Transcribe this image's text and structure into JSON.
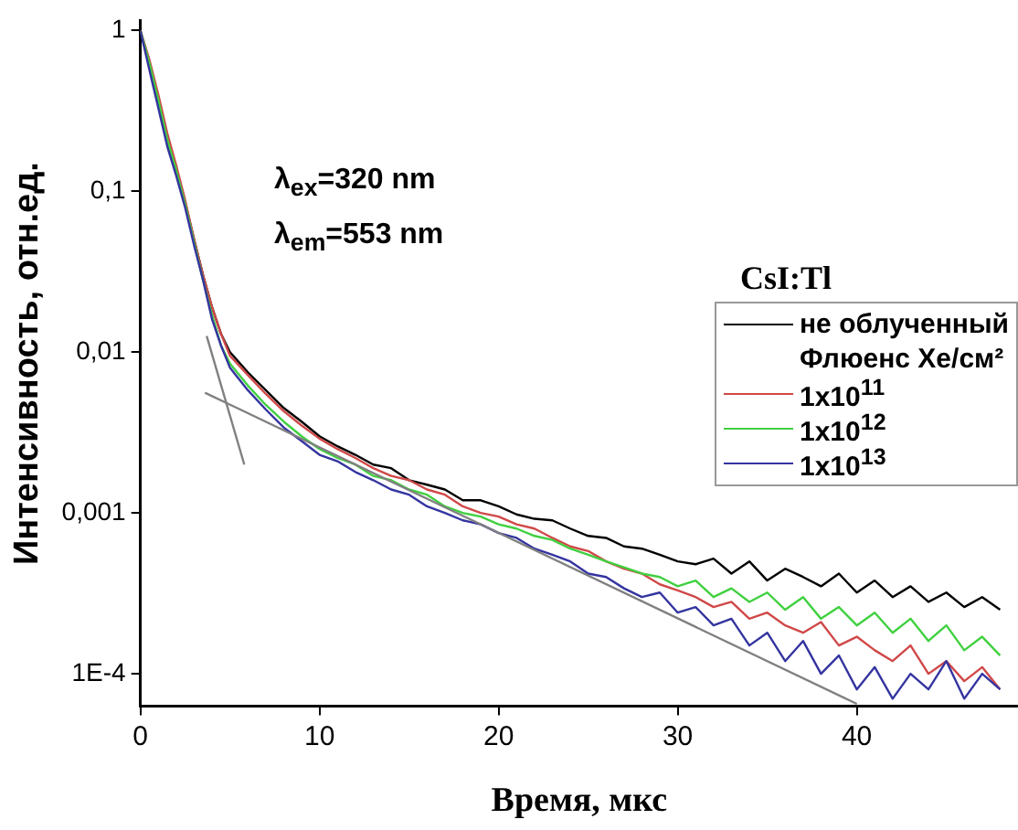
{
  "chart_data": {
    "type": "line",
    "xlabel": "Время, мкс",
    "ylabel": "Интенсивность, отн.ед.",
    "legend_title": "Флюенс Xe/см²",
    "legend": "right",
    "marker": "none",
    "line_style": "solid",
    "grid": false,
    "log": "y",
    "annotations": [
      "CsI:Tl",
      "λ$_{ex}$=320 nm",
      "λ$_{em}$=553 nm"
    ],
    "xlim": [
      0,
      49
    ],
    "xticks": [
      0,
      10,
      20,
      30,
      40
    ],
    "ylim": [
      6.3e-05,
      1.15
    ],
    "yticks": [
      1,
      {
        "value": 0.1,
        "label": "0,1"
      },
      {
        "value": 0.01,
        "label": "0,01"
      },
      {
        "value": 0.001,
        "label": "0,001"
      },
      {
        "value": 0.0001,
        "label": "1E-4"
      }
    ],
    "x": [
      0,
      0.5,
      1,
      1.5,
      2,
      2.5,
      3,
      3.5,
      4,
      4.5,
      5,
      6,
      7,
      8,
      9,
      10,
      11,
      12,
      13,
      14,
      15,
      16,
      17,
      18,
      19,
      20,
      21,
      22,
      23,
      24,
      25,
      26,
      27,
      28,
      29,
      30,
      31,
      32,
      33,
      34,
      35,
      36,
      37,
      38,
      39,
      40,
      41,
      42,
      43,
      44,
      45,
      46,
      47,
      48
    ],
    "series": [
      {
        "name": "не облученный",
        "color": "#000000",
        "values": [
          1,
          0.6,
          0.35,
          0.2,
          0.13,
          0.085,
          0.05,
          0.03,
          0.019,
          0.013,
          0.01,
          0.0075,
          0.0058,
          0.0045,
          0.0037,
          0.003,
          0.0026,
          0.0023,
          0.002,
          0.0019,
          0.0016,
          0.0015,
          0.0014,
          0.0012,
          0.0012,
          0.0011,
          0.00098,
          0.00092,
          0.0009,
          0.0008,
          0.00072,
          0.0007,
          0.00062,
          0.0006,
          0.00055,
          0.0005,
          0.00048,
          0.00052,
          0.00042,
          0.0005,
          0.00038,
          0.00045,
          0.0004,
          0.00035,
          0.00042,
          0.00032,
          0.00038,
          0.0003,
          0.00035,
          0.00028,
          0.00032,
          0.00026,
          0.0003,
          0.00025
        ]
      },
      {
        "name": "1x10$^{11}$",
        "color": "#d04848",
        "values": [
          1,
          0.66,
          0.4,
          0.23,
          0.145,
          0.088,
          0.05,
          0.03,
          0.019,
          0.013,
          0.0095,
          0.0072,
          0.0055,
          0.0043,
          0.0035,
          0.0029,
          0.0025,
          0.0022,
          0.0019,
          0.0017,
          0.0016,
          0.0014,
          0.0013,
          0.0011,
          0.001,
          0.00095,
          0.00085,
          0.0008,
          0.0007,
          0.00062,
          0.00058,
          0.0005,
          0.00045,
          0.00042,
          0.00036,
          0.00033,
          0.0003,
          0.00026,
          0.00028,
          0.00022,
          0.00024,
          0.0002,
          0.00018,
          0.00021,
          0.00015,
          0.00017,
          0.00014,
          0.00012,
          0.00015,
          0.0001,
          0.00012,
          9e-05,
          0.00011,
          8e-05
        ]
      },
      {
        "name": "1x10$^{12}$",
        "color": "#40d040",
        "values": [
          1,
          0.63,
          0.37,
          0.21,
          0.135,
          0.083,
          0.048,
          0.028,
          0.017,
          0.011,
          0.0085,
          0.0062,
          0.0047,
          0.0037,
          0.003,
          0.0025,
          0.0022,
          0.002,
          0.0017,
          0.0016,
          0.0014,
          0.0013,
          0.0011,
          0.001,
          0.00095,
          0.00085,
          0.0008,
          0.00072,
          0.00068,
          0.0006,
          0.00055,
          0.0005,
          0.00046,
          0.00042,
          0.0004,
          0.00035,
          0.00038,
          0.0003,
          0.00034,
          0.00028,
          0.00032,
          0.00025,
          0.0003,
          0.00022,
          0.00026,
          0.0002,
          0.00024,
          0.00018,
          0.00022,
          0.00016,
          0.0002,
          0.00014,
          0.00017,
          0.00013
        ]
      },
      {
        "name": "1x10$^{13}$",
        "color": "#3434a0",
        "values": [
          1,
          0.57,
          0.33,
          0.19,
          0.125,
          0.079,
          0.046,
          0.028,
          0.016,
          0.011,
          0.008,
          0.0058,
          0.0044,
          0.0034,
          0.0028,
          0.0023,
          0.0021,
          0.0018,
          0.0016,
          0.0014,
          0.0013,
          0.0011,
          0.001,
          0.0009,
          0.00085,
          0.00075,
          0.0007,
          0.0006,
          0.00055,
          0.0005,
          0.00042,
          0.0004,
          0.00034,
          0.0003,
          0.00032,
          0.00024,
          0.00026,
          0.0002,
          0.00022,
          0.00015,
          0.00018,
          0.00012,
          0.00016,
          0.0001,
          0.00013,
          8e-05,
          0.00011,
          7e-05,
          0.0001,
          8e-05,
          0.00012,
          7e-05,
          0.0001,
          8e-05
        ]
      },
      {
        "type": "line",
        "color": "#808080",
        "x": [
          3.7,
          5.8
        ],
        "values": [
          0.0126,
          0.002
        ]
      },
      {
        "type": "line",
        "color": "#808080",
        "x": [
          3.6,
          40
        ],
        "values": [
          0.0056,
          6.5e-05
        ]
      }
    ]
  }
}
